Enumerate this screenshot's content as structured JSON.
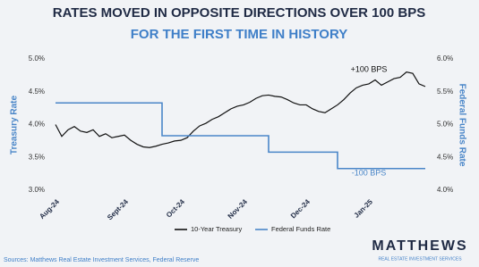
{
  "chart_data": {
    "type": "line",
    "title": "RATES MOVED IN OPPOSITE DIRECTIONS OVER 100 BPS",
    "subtitle": "FOR THE FIRST TIME IN HISTORY",
    "y_label": "Treasury Rate",
    "y2_label": "Federal Funds Rate",
    "categories": [
      "Aug-24",
      null,
      null,
      null,
      null,
      null,
      null,
      null,
      null,
      null,
      null,
      "Sept-24",
      null,
      null,
      null,
      null,
      null,
      null,
      null,
      null,
      "Oct-24",
      null,
      null,
      null,
      null,
      null,
      null,
      null,
      null,
      null,
      "Nov-24",
      null,
      null,
      null,
      null,
      null,
      null,
      null,
      null,
      null,
      "Dec-24",
      null,
      null,
      null,
      null,
      null,
      null,
      null,
      null,
      null,
      "Jan-25",
      null,
      null,
      null,
      null,
      null,
      null,
      null,
      null,
      null
    ],
    "series": [
      {
        "name": "10-Year Treasury",
        "color": "#111111",
        "values": [
          4.0,
          3.82,
          3.92,
          3.97,
          3.9,
          3.88,
          3.92,
          3.82,
          3.86,
          3.8,
          3.82,
          3.84,
          3.76,
          3.7,
          3.66,
          3.65,
          3.67,
          3.7,
          3.72,
          3.75,
          3.76,
          3.8,
          3.9,
          3.98,
          4.02,
          4.08,
          4.12,
          4.18,
          4.24,
          4.28,
          4.3,
          4.34,
          4.4,
          4.44,
          4.45,
          4.43,
          4.42,
          4.38,
          4.33,
          4.3,
          4.3,
          4.24,
          4.2,
          4.18,
          4.24,
          4.3,
          4.38,
          4.48,
          4.56,
          4.6,
          4.62,
          4.68,
          4.6,
          4.65,
          4.7,
          4.72,
          4.8,
          4.78,
          4.62,
          4.58
        ]
      },
      {
        "name": "Federal Funds Rate",
        "color": "#4a86c8",
        "axis": "y2",
        "step": true,
        "values": [
          5.33,
          5.33,
          5.33,
          5.33,
          5.33,
          5.33,
          5.33,
          5.33,
          5.33,
          5.33,
          5.33,
          5.33,
          5.33,
          5.33,
          5.33,
          5.33,
          5.33,
          4.83,
          4.83,
          4.83,
          4.83,
          4.83,
          4.83,
          4.83,
          4.83,
          4.83,
          4.83,
          4.83,
          4.83,
          4.83,
          4.83,
          4.83,
          4.83,
          4.83,
          4.58,
          4.58,
          4.58,
          4.58,
          4.58,
          4.58,
          4.58,
          4.58,
          4.58,
          4.58,
          4.58,
          4.33,
          4.33,
          4.33,
          4.33,
          4.33,
          4.33,
          4.33,
          4.33,
          4.33,
          4.33,
          4.33,
          4.33,
          4.33,
          4.33,
          4.33
        ]
      }
    ],
    "ylim": [
      3.0,
      5.0
    ],
    "yticks": [
      {
        "value": 3.0,
        "label": "3.0%"
      },
      {
        "value": 3.5,
        "label": "3.5%"
      },
      {
        "value": 4.0,
        "label": "4.0%"
      },
      {
        "value": 4.5,
        "label": "4.5%"
      },
      {
        "value": 5.0,
        "label": "5.0%"
      }
    ],
    "y2lim": [
      4.0,
      6.0
    ],
    "y2ticks": [
      {
        "value": 4.0,
        "label": "4.0%"
      },
      {
        "value": 4.5,
        "label": "4.5%"
      },
      {
        "value": 5.0,
        "label": "5.0%"
      },
      {
        "value": 5.5,
        "label": "5.5%"
      },
      {
        "value": 6.0,
        "label": "6.0%"
      }
    ],
    "annotations": [
      "+100 BPS",
      "-100 BPS"
    ],
    "grid": false,
    "legend": "bottom"
  },
  "source": "Sources: Matthews Real Estate Investment Services, Federal Reserve",
  "logo": {
    "name": "MATTHEWS",
    "tagline": "REAL ESTATE INVESTMENT SERVICES"
  }
}
